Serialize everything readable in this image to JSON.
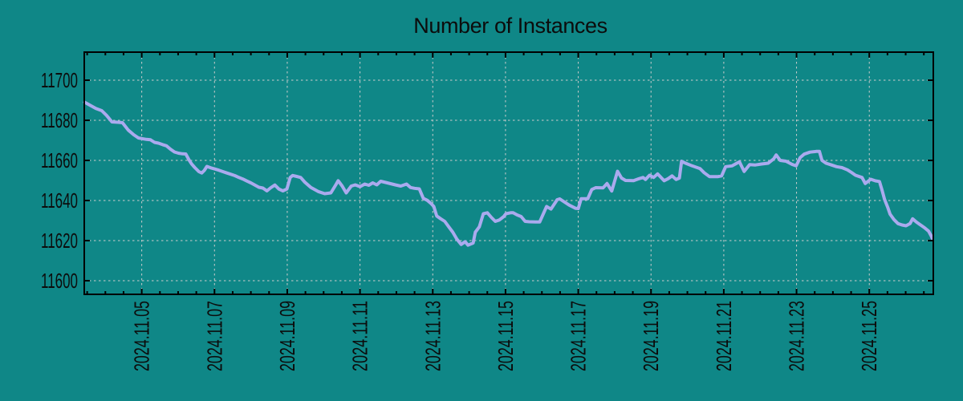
{
  "page": {
    "background": "#0f8787"
  },
  "chart_data": {
    "type": "line",
    "title": "Number of Instances",
    "xlabel": "",
    "ylabel": "",
    "legend": "none",
    "grid": "dashed",
    "colors": {
      "background": "#0f8787",
      "line": "#aaaaee",
      "grid": "#cccccc",
      "axis": "#000000",
      "text": "#0c0c0c"
    },
    "x_ticks": [
      {
        "day": 5,
        "label": "2024.11.05"
      },
      {
        "day": 7,
        "label": "2024.11.07"
      },
      {
        "day": 9,
        "label": "2024.11.09"
      },
      {
        "day": 11,
        "label": "2024.11.11"
      },
      {
        "day": 13,
        "label": "2024.11.13"
      },
      {
        "day": 15,
        "label": "2024.11.15"
      },
      {
        "day": 17,
        "label": "2024.11.17"
      },
      {
        "day": 19,
        "label": "2024.11.19"
      },
      {
        "day": 21,
        "label": "2024.11.21"
      },
      {
        "day": 23,
        "label": "2024.11.23"
      },
      {
        "day": 25,
        "label": "2024.11.25"
      }
    ],
    "x_minor_step_days": 0.5,
    "y_ticks": [
      11600,
      11620,
      11640,
      11660,
      11680,
      11700
    ],
    "xlim_days": [
      3.42,
      26.76
    ],
    "ylim": [
      11593.2,
      11714.0
    ],
    "series": [
      {
        "name": "instances",
        "points": [
          [
            3.43,
            11689.0
          ],
          [
            3.59,
            11687.4
          ],
          [
            3.74,
            11685.9
          ],
          [
            3.9,
            11684.8
          ],
          [
            4.03,
            11682.5
          ],
          [
            4.18,
            11679.2
          ],
          [
            4.36,
            11679.0
          ],
          [
            4.47,
            11678.8
          ],
          [
            4.63,
            11675.1
          ],
          [
            4.78,
            11672.8
          ],
          [
            4.91,
            11671.2
          ],
          [
            5.0,
            11670.9
          ],
          [
            5.13,
            11670.5
          ],
          [
            5.24,
            11670.3
          ],
          [
            5.35,
            11669.0
          ],
          [
            5.46,
            11668.6
          ],
          [
            5.57,
            11667.9
          ],
          [
            5.68,
            11667.3
          ],
          [
            5.79,
            11665.6
          ],
          [
            5.9,
            11664.2
          ],
          [
            6.01,
            11663.6
          ],
          [
            6.12,
            11663.3
          ],
          [
            6.21,
            11663.2
          ],
          [
            6.3,
            11660.2
          ],
          [
            6.37,
            11658.3
          ],
          [
            6.46,
            11656.4
          ],
          [
            6.57,
            11654.4
          ],
          [
            6.65,
            11653.7
          ],
          [
            6.72,
            11655.0
          ],
          [
            6.79,
            11657.0
          ],
          [
            6.9,
            11656.3
          ],
          [
            7.01,
            11655.7
          ],
          [
            7.12,
            11655.1
          ],
          [
            7.23,
            11654.4
          ],
          [
            7.34,
            11653.7
          ],
          [
            7.45,
            11653.1
          ],
          [
            7.56,
            11652.4
          ],
          [
            7.67,
            11651.5
          ],
          [
            7.78,
            11650.7
          ],
          [
            7.89,
            11649.7
          ],
          [
            8.0,
            11648.8
          ],
          [
            8.11,
            11647.7
          ],
          [
            8.22,
            11646.6
          ],
          [
            8.33,
            11646.2
          ],
          [
            8.44,
            11644.8
          ],
          [
            8.55,
            11646.4
          ],
          [
            8.66,
            11647.7
          ],
          [
            8.77,
            11645.7
          ],
          [
            8.88,
            11644.8
          ],
          [
            8.99,
            11645.7
          ],
          [
            9.08,
            11651.5
          ],
          [
            9.15,
            11652.5
          ],
          [
            9.26,
            11652.0
          ],
          [
            9.37,
            11651.5
          ],
          [
            9.48,
            11649.2
          ],
          [
            9.65,
            11646.5
          ],
          [
            9.85,
            11644.5
          ],
          [
            10.03,
            11643.4
          ],
          [
            10.2,
            11643.8
          ],
          [
            10.34,
            11648.0
          ],
          [
            10.4,
            11649.9
          ],
          [
            10.51,
            11647.2
          ],
          [
            10.62,
            11643.8
          ],
          [
            10.76,
            11647.2
          ],
          [
            10.87,
            11647.8
          ],
          [
            11.0,
            11646.9
          ],
          [
            11.13,
            11648.2
          ],
          [
            11.24,
            11647.6
          ],
          [
            11.35,
            11648.8
          ],
          [
            11.46,
            11647.8
          ],
          [
            11.57,
            11649.6
          ],
          [
            11.75,
            11648.8
          ],
          [
            11.97,
            11647.8
          ],
          [
            12.12,
            11647.2
          ],
          [
            12.28,
            11648.2
          ],
          [
            12.39,
            11646.5
          ],
          [
            12.5,
            11646.1
          ],
          [
            12.63,
            11645.8
          ],
          [
            12.74,
            11641.1
          ],
          [
            12.85,
            11640.1
          ],
          [
            12.96,
            11638.4
          ],
          [
            13.03,
            11637.0
          ],
          [
            13.11,
            11632.3
          ],
          [
            13.22,
            11630.9
          ],
          [
            13.33,
            11629.6
          ],
          [
            13.44,
            11626.9
          ],
          [
            13.55,
            11624.2
          ],
          [
            13.66,
            11620.8
          ],
          [
            13.78,
            11618.1
          ],
          [
            13.89,
            11619.5
          ],
          [
            13.97,
            11617.7
          ],
          [
            14.11,
            11618.8
          ],
          [
            14.17,
            11624.2
          ],
          [
            14.28,
            11626.9
          ],
          [
            14.39,
            11633.4
          ],
          [
            14.5,
            11633.9
          ],
          [
            14.61,
            11631.6
          ],
          [
            14.72,
            11629.6
          ],
          [
            14.83,
            11630.3
          ],
          [
            14.95,
            11632.0
          ],
          [
            15.01,
            11633.4
          ],
          [
            15.14,
            11633.9
          ],
          [
            15.21,
            11633.9
          ],
          [
            15.32,
            11632.8
          ],
          [
            15.43,
            11632.0
          ],
          [
            15.54,
            11629.6
          ],
          [
            15.65,
            11629.4
          ],
          [
            15.83,
            11629.3
          ],
          [
            15.94,
            11629.3
          ],
          [
            16.13,
            11637.0
          ],
          [
            16.25,
            11635.7
          ],
          [
            16.42,
            11640.4
          ],
          [
            16.49,
            11640.8
          ],
          [
            16.64,
            11639.0
          ],
          [
            16.75,
            11637.7
          ],
          [
            16.93,
            11636.1
          ],
          [
            17.0,
            11636.0
          ],
          [
            17.08,
            11640.9
          ],
          [
            17.26,
            11640.9
          ],
          [
            17.37,
            11645.5
          ],
          [
            17.48,
            11646.4
          ],
          [
            17.68,
            11646.3
          ],
          [
            17.79,
            11648.5
          ],
          [
            17.92,
            11644.7
          ],
          [
            18.08,
            11654.6
          ],
          [
            18.19,
            11651.2
          ],
          [
            18.3,
            11650.0
          ],
          [
            18.52,
            11649.9
          ],
          [
            18.67,
            11650.9
          ],
          [
            18.78,
            11651.5
          ],
          [
            18.85,
            11650.5
          ],
          [
            18.96,
            11652.6
          ],
          [
            19.07,
            11651.5
          ],
          [
            19.18,
            11653.3
          ],
          [
            19.29,
            11651.2
          ],
          [
            19.36,
            11649.9
          ],
          [
            19.47,
            11650.9
          ],
          [
            19.58,
            11652.3
          ],
          [
            19.69,
            11650.5
          ],
          [
            19.78,
            11651.2
          ],
          [
            19.84,
            11659.6
          ],
          [
            19.95,
            11658.6
          ],
          [
            20.13,
            11657.3
          ],
          [
            20.35,
            11655.9
          ],
          [
            20.46,
            11653.9
          ],
          [
            20.61,
            11651.9
          ],
          [
            20.83,
            11651.9
          ],
          [
            20.94,
            11652.3
          ],
          [
            21.05,
            11656.9
          ],
          [
            21.23,
            11657.3
          ],
          [
            21.43,
            11659.3
          ],
          [
            21.56,
            11654.5
          ],
          [
            21.71,
            11657.9
          ],
          [
            21.87,
            11657.7
          ],
          [
            22.04,
            11658.2
          ],
          [
            22.22,
            11658.6
          ],
          [
            22.37,
            11660.7
          ],
          [
            22.44,
            11662.7
          ],
          [
            22.55,
            11660.0
          ],
          [
            22.71,
            11659.6
          ],
          [
            22.88,
            11658.0
          ],
          [
            22.99,
            11657.3
          ],
          [
            23.1,
            11661.4
          ],
          [
            23.21,
            11663.1
          ],
          [
            23.37,
            11664.1
          ],
          [
            23.54,
            11664.5
          ],
          [
            23.63,
            11664.5
          ],
          [
            23.7,
            11660.0
          ],
          [
            23.81,
            11658.6
          ],
          [
            23.96,
            11657.7
          ],
          [
            24.1,
            11656.9
          ],
          [
            24.25,
            11656.4
          ],
          [
            24.4,
            11655.3
          ],
          [
            24.51,
            11654.0
          ],
          [
            24.62,
            11652.6
          ],
          [
            24.8,
            11651.5
          ],
          [
            24.89,
            11648.5
          ],
          [
            25.04,
            11650.6
          ],
          [
            25.17,
            11649.8
          ],
          [
            25.28,
            11649.5
          ],
          [
            25.35,
            11645.2
          ],
          [
            25.42,
            11640.5
          ],
          [
            25.51,
            11636.5
          ],
          [
            25.57,
            11633.2
          ],
          [
            25.68,
            11630.5
          ],
          [
            25.79,
            11628.5
          ],
          [
            25.9,
            11627.8
          ],
          [
            26.01,
            11627.4
          ],
          [
            26.12,
            11628.5
          ],
          [
            26.19,
            11630.9
          ],
          [
            26.3,
            11629.2
          ],
          [
            26.41,
            11627.8
          ],
          [
            26.52,
            11626.4
          ],
          [
            26.63,
            11624.7
          ],
          [
            26.7,
            11622.4
          ],
          [
            26.74,
            11620.7
          ]
        ]
      }
    ]
  }
}
